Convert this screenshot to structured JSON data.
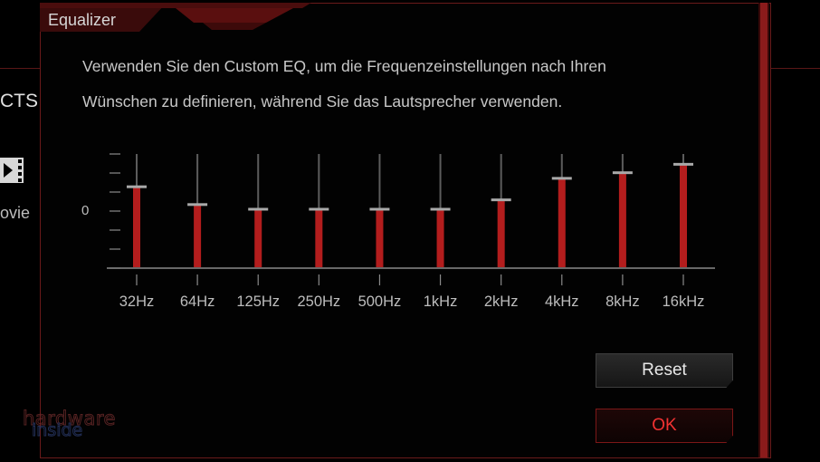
{
  "background_app": {
    "title_partial": "CTS",
    "movie_label_partial": "ovie"
  },
  "dialog": {
    "title": "Equalizer",
    "description_line1": "Verwenden Sie den Custom EQ, um die Frequenzeinstellungen nach Ihren",
    "description_line2": "Wünschen zu definieren, während Sie das Lautsprecher verwenden."
  },
  "equalizer": {
    "zero_label": "0",
    "range": [
      -6,
      6
    ],
    "accent_color": "#b31d1d",
    "bands": [
      {
        "label": "32Hz",
        "value": 2.5
      },
      {
        "label": "64Hz",
        "value": 0.6
      },
      {
        "label": "125Hz",
        "value": 0.1
      },
      {
        "label": "250Hz",
        "value": 0.1
      },
      {
        "label": "500Hz",
        "value": 0.1
      },
      {
        "label": "1kHz",
        "value": 0.1
      },
      {
        "label": "2kHz",
        "value": 1.1
      },
      {
        "label": "4kHz",
        "value": 3.4
      },
      {
        "label": "8kHz",
        "value": 4.0
      },
      {
        "label": "16kHz",
        "value": 4.9
      }
    ]
  },
  "buttons": {
    "reset_label": "Reset",
    "ok_label": "OK"
  },
  "watermark": {
    "line1": "hardware",
    "line2": "inside"
  }
}
